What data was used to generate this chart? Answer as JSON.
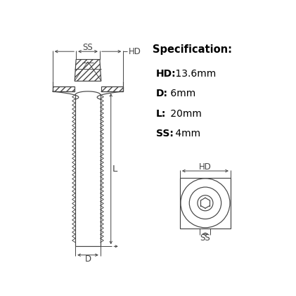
{
  "title": "Specification:",
  "spec_lines": [
    {
      "bold": "HD:",
      "normal": " 13.6mm"
    },
    {
      "bold": "D:",
      "normal": " 6mm"
    },
    {
      "bold": "L:",
      "normal": " 20mm"
    },
    {
      "bold": "SS:",
      "normal": " 4mm"
    }
  ],
  "bg_color": "#ffffff",
  "line_color": "#444444",
  "font_size": 8.5,
  "title_font_size": 10.5,
  "thread_pitch": 0.018,
  "thread_overhang": 0.014
}
